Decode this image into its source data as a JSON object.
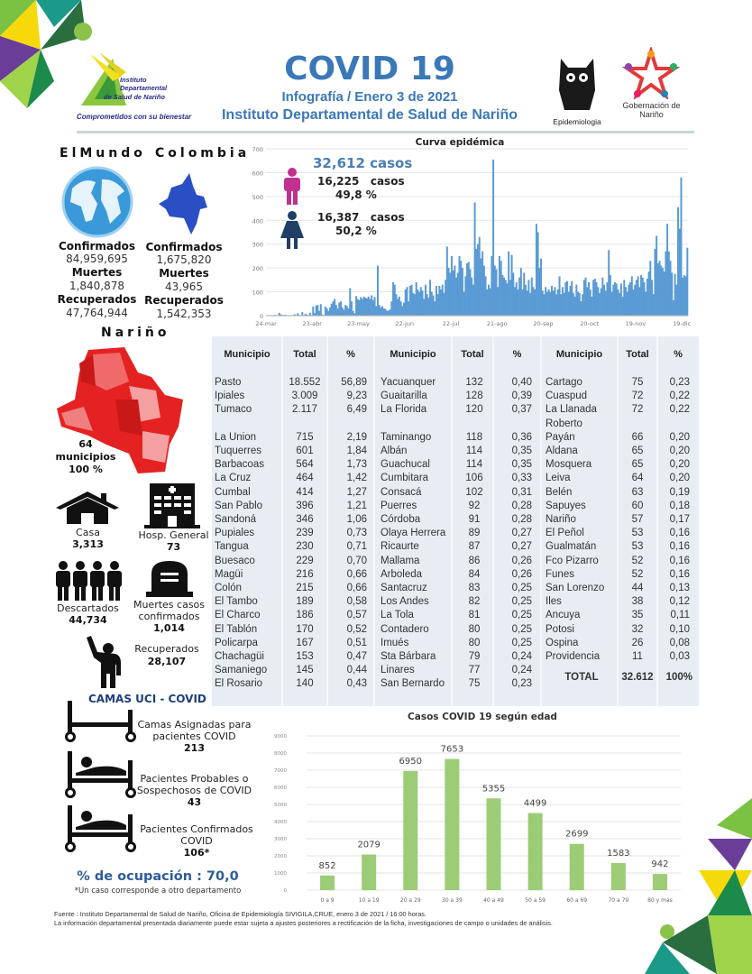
{
  "header": {
    "title": "COVID 19",
    "subtitle": "Infografía / Enero 3 de 2021",
    "institution": "Instituto Departamental de Salud de Nariño",
    "logo_left_text": [
      "Instituto",
      "Departamental",
      "de Salud de Nariño"
    ],
    "logo_left_tagline": "Comprometidos con su bienestar",
    "logo_epi": "Epidemiologia",
    "logo_gob": "Gobernación de Nariño"
  },
  "world": {
    "heading": "ElMundo",
    "confirmados_label": "Confirmados",
    "confirmados": "84,959,695",
    "muertes_label": "Muertes",
    "muertes": "1,840,878",
    "recuperados_label": "Recuperados",
    "recuperados": "47,764,944"
  },
  "colombia": {
    "heading": "Colombia",
    "confirmados_label": "Confirmados",
    "confirmados": "1,675,820",
    "muertes_label": "Muertes",
    "muertes": "43,965",
    "recuperados_label": "Recuperados",
    "recuperados": "1,542,353"
  },
  "gender": {
    "total": "32,612  casos",
    "men_cases": "16,225   casos",
    "men_pct": "49,8 %",
    "women_cases": "16,387   casos",
    "women_pct": "50,2 %"
  },
  "narino": {
    "heading": "Nariño",
    "municipios": "64",
    "municipios_label": "municipios",
    "municipios_pct": "100 %",
    "casa_label": "Casa",
    "casa": "3,313",
    "hosp_label": "Hosp. General",
    "hosp": "73",
    "descartados_label": "Descartados",
    "descartados": "44,734",
    "muertes_label_1": "Muertes casos",
    "muertes_label_2": "confirmados",
    "muertes": "1,014",
    "recuperados_label": "Recuperados",
    "recuperados": "28,107"
  },
  "uci": {
    "heading": "CAMAS UCI - COVID",
    "asignadas_label_1": "Camas Asignadas para",
    "asignadas_label_2": "pacientes COVID",
    "asignadas": "213",
    "probables_label_1": "Pacientes Probables o",
    "probables_label_2": "Sospechosos de COVID",
    "probables": "43",
    "confirmados_label_1": "Pacientes Confirmados",
    "confirmados_label_2": "COVID",
    "confirmados": "106*",
    "ocupacion": "% de ocupación : 70,0",
    "nota": "*Un caso corresponde a otro departamento"
  },
  "table": {
    "headers": [
      "Municipio",
      "Total",
      "%",
      "Municipio",
      "Total",
      "%",
      "Municipio",
      "Total",
      "%"
    ],
    "rows": [
      [
        "Pasto",
        "18.552",
        "56,89",
        "Yacuanquer",
        "132",
        "0,40",
        "Cartago",
        "75",
        "0,23"
      ],
      [
        "Ipiales",
        "3.009",
        "9,23",
        "Guaitarilla",
        "128",
        "0,39",
        "Cuaspud",
        "72",
        "0,22"
      ],
      [
        "Tumaco",
        "2.117",
        "6,49",
        "La Florida",
        "120",
        "0,37",
        "La Llanada",
        "72",
        "0,22"
      ],
      [
        "La Union",
        "715",
        "2,19",
        "Taminango",
        "118",
        "0,36",
        "Roberto Payán",
        "66",
        "0,20"
      ],
      [
        "Tuquerres",
        "601",
        "1,84",
        "Albán",
        "114",
        "0,35",
        "Aldana",
        "65",
        "0,20"
      ],
      [
        "Barbacoas",
        "564",
        "1,73",
        "Guachucal",
        "114",
        "0,35",
        "Mosquera",
        "65",
        "0,20"
      ],
      [
        "La Cruz",
        "464",
        "1,42",
        "Cumbitara",
        "106",
        "0,33",
        "Leiva",
        "64",
        "0,20"
      ],
      [
        "Cumbal",
        "414",
        "1,27",
        "Consacá",
        "102",
        "0,31",
        "Belén",
        "63",
        "0,19"
      ],
      [
        "San Pablo",
        "396",
        "1,21",
        "Puerres",
        "92",
        "0,28",
        "Sapuyes",
        "60",
        "0,18"
      ],
      [
        "Sandoná",
        "346",
        "1,06",
        "Córdoba",
        "91",
        "0,28",
        "Nariño",
        "57",
        "0,17"
      ],
      [
        "Pupiales",
        "239",
        "0,73",
        "Olaya Herrera",
        "89",
        "0,27",
        "El Peñol",
        "53",
        "0,16"
      ],
      [
        "Tangua",
        "230",
        "0,71",
        "Ricaurte",
        "87",
        "0,27",
        "Gualmatán",
        "53",
        "0,16"
      ],
      [
        "Buesaco",
        "229",
        "0,70",
        "Mallama",
        "86",
        "0,26",
        "Fco Pizarro",
        "52",
        "0,16"
      ],
      [
        "Magüi",
        "216",
        "0,66",
        "Arboleda",
        "84",
        "0,26",
        "Funes",
        "52",
        "0,16"
      ],
      [
        "Colón",
        "215",
        "0,66",
        "Santacruz",
        "83",
        "0,25",
        "San Lorenzo",
        "44",
        "0,13"
      ],
      [
        "El Tambo",
        "189",
        "0,58",
        "Los Andes",
        "82",
        "0,25",
        "Iles",
        "38",
        "0,12"
      ],
      [
        "El Charco",
        "186",
        "0,57",
        "La Tola",
        "81",
        "0,25",
        "Ancuya",
        "35",
        "0,11"
      ],
      [
        "El Tablón",
        "170",
        "0,52",
        "Contadero",
        "80",
        "0,25",
        "Potosi",
        "32",
        "0,10"
      ],
      [
        "Policarpa",
        "167",
        "0,51",
        "Imués",
        "80",
        "0,25",
        "Ospina",
        "26",
        "0,08"
      ],
      [
        "Chachagüi",
        "153",
        "0,47",
        "Sta Bárbara",
        "79",
        "0,24",
        "Providencia",
        "11",
        "0,03"
      ],
      [
        "Samaniego",
        "145",
        "0,44",
        "Linares",
        "77",
        "0,24",
        "",
        "",
        ""
      ],
      [
        "El Rosario",
        "140",
        "0,43",
        "San Bernardo",
        "75",
        "0,23",
        "",
        "",
        ""
      ]
    ],
    "total_label": "TOTAL",
    "total": "32.612",
    "total_pct": "100%"
  },
  "footer": {
    "line1": "Fuente : Instituto Departamental de Salud de Nariño, Oficina de Epidemiología SIVIGILA,CRUE,  enero 3 de 2021  / 16:00  horas.",
    "line2": "La información departamental presentada diariamente puede estar sujeta a ajustes posteriores a  rectificación de la ficha, investigaciones de campo o unidades de análisis."
  },
  "colors": {
    "title_blue": "#3a78b8",
    "bar_blue": "#5b9bd5",
    "bar_green": "#9ccc75",
    "men_pink": "#c2308f",
    "women_navy": "#1f3f66",
    "map_red": "#e52222"
  },
  "chart_data": [
    {
      "type": "bar",
      "title": "Curva epidémica",
      "xlabel": "",
      "ylabel": "",
      "ylim": [
        0,
        700
      ],
      "yticks": [
        "0",
        "100",
        "200",
        "300",
        "400",
        "500",
        "600",
        "700"
      ],
      "xtick_labels": [
        "24-mar",
        "23-abr",
        "23-may",
        "22-jun",
        "22-jul",
        "21-ago",
        "20-sep",
        "20-oct",
        "19-nov",
        "19-dic"
      ],
      "xtick_every_days": 30,
      "values": [
        0,
        1,
        0,
        2,
        1,
        3,
        0,
        1,
        12,
        5,
        3,
        2,
        4,
        1,
        0,
        2,
        1,
        0,
        6,
        2,
        10,
        3,
        1,
        15,
        2,
        8,
        4,
        1,
        12,
        3,
        38,
        10,
        42,
        45,
        20,
        48,
        5,
        2,
        38,
        30,
        20,
        35,
        50,
        60,
        70,
        45,
        30,
        55,
        60,
        35,
        25,
        45,
        40,
        30,
        115,
        60,
        20,
        10,
        82,
        70,
        65,
        78,
        70,
        80,
        75,
        72,
        80,
        70,
        85,
        65,
        78,
        40,
        210,
        45,
        35,
        40,
        30,
        28,
        20,
        22,
        25,
        60,
        140,
        130,
        90,
        70,
        80,
        60,
        40,
        55,
        110,
        120,
        60,
        125,
        130,
        95,
        90,
        140,
        110,
        100,
        120,
        105,
        70,
        130,
        90,
        75,
        150,
        100,
        85,
        60,
        125,
        90,
        125,
        110,
        130,
        95,
        150,
        290,
        200,
        180,
        250,
        190,
        210,
        160,
        180,
        250,
        230,
        200,
        100,
        165,
        220,
        225,
        195,
        160,
        130,
        475,
        280,
        300,
        330,
        240,
        270,
        210,
        165,
        110,
        130,
        115,
        250,
        655,
        210,
        195,
        120,
        250,
        230,
        170,
        160,
        150,
        135,
        270,
        150,
        255,
        180,
        120,
        140,
        110,
        160,
        200,
        110,
        180,
        130,
        105,
        150,
        95,
        160,
        120,
        110,
        385,
        350,
        200,
        240,
        105,
        90,
        120,
        100,
        110,
        100,
        125,
        105,
        120,
        90,
        110,
        165,
        90,
        120,
        95,
        140,
        145,
        100,
        125,
        145,
        95,
        80,
        130,
        100,
        95,
        60,
        90,
        150,
        160,
        120,
        140,
        110,
        80,
        150,
        155,
        140,
        120,
        95,
        115,
        160,
        130,
        105,
        140,
        275,
        170,
        100,
        130,
        140,
        135,
        110,
        95,
        135,
        80,
        150,
        120,
        100,
        130,
        140,
        165,
        110,
        130,
        150,
        165,
        120,
        170,
        160,
        140,
        100,
        155,
        185,
        230,
        150,
        90,
        280,
        335,
        220,
        230,
        210,
        200,
        185,
        270,
        385,
        270,
        230,
        180,
        65,
        175,
        130,
        455,
        365,
        580,
        160,
        170,
        165,
        285
      ]
    },
    {
      "type": "bar",
      "title": "Casos COVID 19  según edad",
      "xlabel": "",
      "ylabel": "",
      "ylim": [
        0,
        9000
      ],
      "yticks": [
        "0",
        "1000",
        "2000",
        "3000",
        "4000",
        "5000",
        "6000",
        "7000",
        "8000",
        "9000"
      ],
      "categories": [
        "0 a 9",
        "10 a 19",
        "20 a 29",
        "30 a 39",
        "40 a 49",
        "50 a 59",
        "60 a 69",
        "70 a 79",
        "80 y mas"
      ],
      "values": [
        852,
        2079,
        6950,
        7653,
        5355,
        4499,
        2699,
        1583,
        942
      ],
      "data_labels": [
        "852",
        "2079",
        "6950",
        "7653",
        "5355",
        "4499",
        "2699",
        "1583",
        "942"
      ],
      "grid": true
    }
  ]
}
